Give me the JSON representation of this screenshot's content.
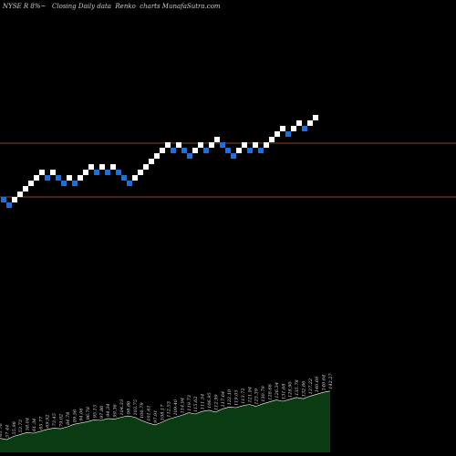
{
  "title_text": "NYSE R 8%~   Closing Daily data  Renko  charts MunafaSutra.com",
  "chart_data": {
    "type": "renko",
    "title": "NYSE R 8%~   Closing Daily data  Renko  charts MunafaSutra.com",
    "box_size_pct": 8,
    "colors": {
      "up": "#ffffff",
      "down": "#1e6fd9",
      "line": "#8a4a1e",
      "volume": "#0b3b12",
      "volume_line": "#ffffff",
      "background": "#000000"
    },
    "reference_lines": [
      123.56,
      80.06
    ],
    "bricks": [
      {
        "dir": "down",
        "level": 2
      },
      {
        "dir": "down",
        "level": 1
      },
      {
        "dir": "up",
        "level": 2
      },
      {
        "dir": "up",
        "level": 3
      },
      {
        "dir": "up",
        "level": 4
      },
      {
        "dir": "up",
        "level": 5
      },
      {
        "dir": "up",
        "level": 6
      },
      {
        "dir": "up",
        "level": 7
      },
      {
        "dir": "down",
        "level": 6
      },
      {
        "dir": "up",
        "level": 7
      },
      {
        "dir": "down",
        "level": 6
      },
      {
        "dir": "down",
        "level": 5
      },
      {
        "dir": "up",
        "level": 6
      },
      {
        "dir": "down",
        "level": 5
      },
      {
        "dir": "up",
        "level": 6
      },
      {
        "dir": "up",
        "level": 7
      },
      {
        "dir": "up",
        "level": 8
      },
      {
        "dir": "down",
        "level": 7
      },
      {
        "dir": "up",
        "level": 8
      },
      {
        "dir": "down",
        "level": 7
      },
      {
        "dir": "up",
        "level": 8
      },
      {
        "dir": "down",
        "level": 7
      },
      {
        "dir": "down",
        "level": 6
      },
      {
        "dir": "down",
        "level": 5
      },
      {
        "dir": "up",
        "level": 6
      },
      {
        "dir": "up",
        "level": 7
      },
      {
        "dir": "up",
        "level": 8
      },
      {
        "dir": "up",
        "level": 9
      },
      {
        "dir": "up",
        "level": 10
      },
      {
        "dir": "up",
        "level": 11
      },
      {
        "dir": "up",
        "level": 12
      },
      {
        "dir": "down",
        "level": 11
      },
      {
        "dir": "up",
        "level": 12
      },
      {
        "dir": "down",
        "level": 11
      },
      {
        "dir": "down",
        "level": 10
      },
      {
        "dir": "up",
        "level": 11
      },
      {
        "dir": "up",
        "level": 12
      },
      {
        "dir": "down",
        "level": 11
      },
      {
        "dir": "up",
        "level": 12
      },
      {
        "dir": "up",
        "level": 13
      },
      {
        "dir": "down",
        "level": 12
      },
      {
        "dir": "down",
        "level": 11
      },
      {
        "dir": "down",
        "level": 10
      },
      {
        "dir": "up",
        "level": 11
      },
      {
        "dir": "up",
        "level": 12
      },
      {
        "dir": "down",
        "level": 11
      },
      {
        "dir": "up",
        "level": 12
      },
      {
        "dir": "down",
        "level": 11
      },
      {
        "dir": "up",
        "level": 12
      },
      {
        "dir": "up",
        "level": 13
      },
      {
        "dir": "up",
        "level": 14
      },
      {
        "dir": "up",
        "level": 15
      },
      {
        "dir": "down",
        "level": 14
      },
      {
        "dir": "up",
        "level": 15
      },
      {
        "dir": "up",
        "level": 16
      },
      {
        "dir": "down",
        "level": 15
      },
      {
        "dir": "up",
        "level": 16
      },
      {
        "dir": "up",
        "level": 17
      }
    ],
    "volume_labels": [
      "61.76",
      "57.44",
      "55.98",
      "53.73",
      "58.04",
      "61.34",
      "65.77",
      "69.92",
      "73.45",
      "79.02",
      "84.78",
      "89.56",
      "94.06",
      "96.78",
      "95.13",
      "97.86",
      "94.34",
      "99.36",
      "104.33",
      "98.86",
      "103.75",
      "106.79",
      "101.61",
      "97.91",
      "108.17",
      "112.53",
      "109.40",
      "114.94",
      "119.73",
      "115.62",
      "111.54",
      "106.95",
      "112.99",
      "117.64",
      "122.10",
      "119.05",
      "113.72",
      "121.94",
      "125.39",
      "130.79",
      "128.66",
      "126.34",
      "131.68",
      "128.90",
      "135.78",
      "132.86",
      "137.22",
      "140.69",
      "146.64",
      "142.27"
    ],
    "volume_area_heights": [
      0.22,
      0.2,
      0.25,
      0.28,
      0.31,
      0.3,
      0.33,
      0.36,
      0.38,
      0.37,
      0.4,
      0.44,
      0.46,
      0.48,
      0.51,
      0.5,
      0.53,
      0.52,
      0.55,
      0.57,
      0.55,
      0.5,
      0.46,
      0.43,
      0.47,
      0.52,
      0.55,
      0.58,
      0.62,
      0.6,
      0.64,
      0.66,
      0.63,
      0.68,
      0.71,
      0.7,
      0.73,
      0.75,
      0.72,
      0.76,
      0.79,
      0.82,
      0.8,
      0.83,
      0.86,
      0.84,
      0.88,
      0.91,
      0.94,
      0.96
    ]
  }
}
